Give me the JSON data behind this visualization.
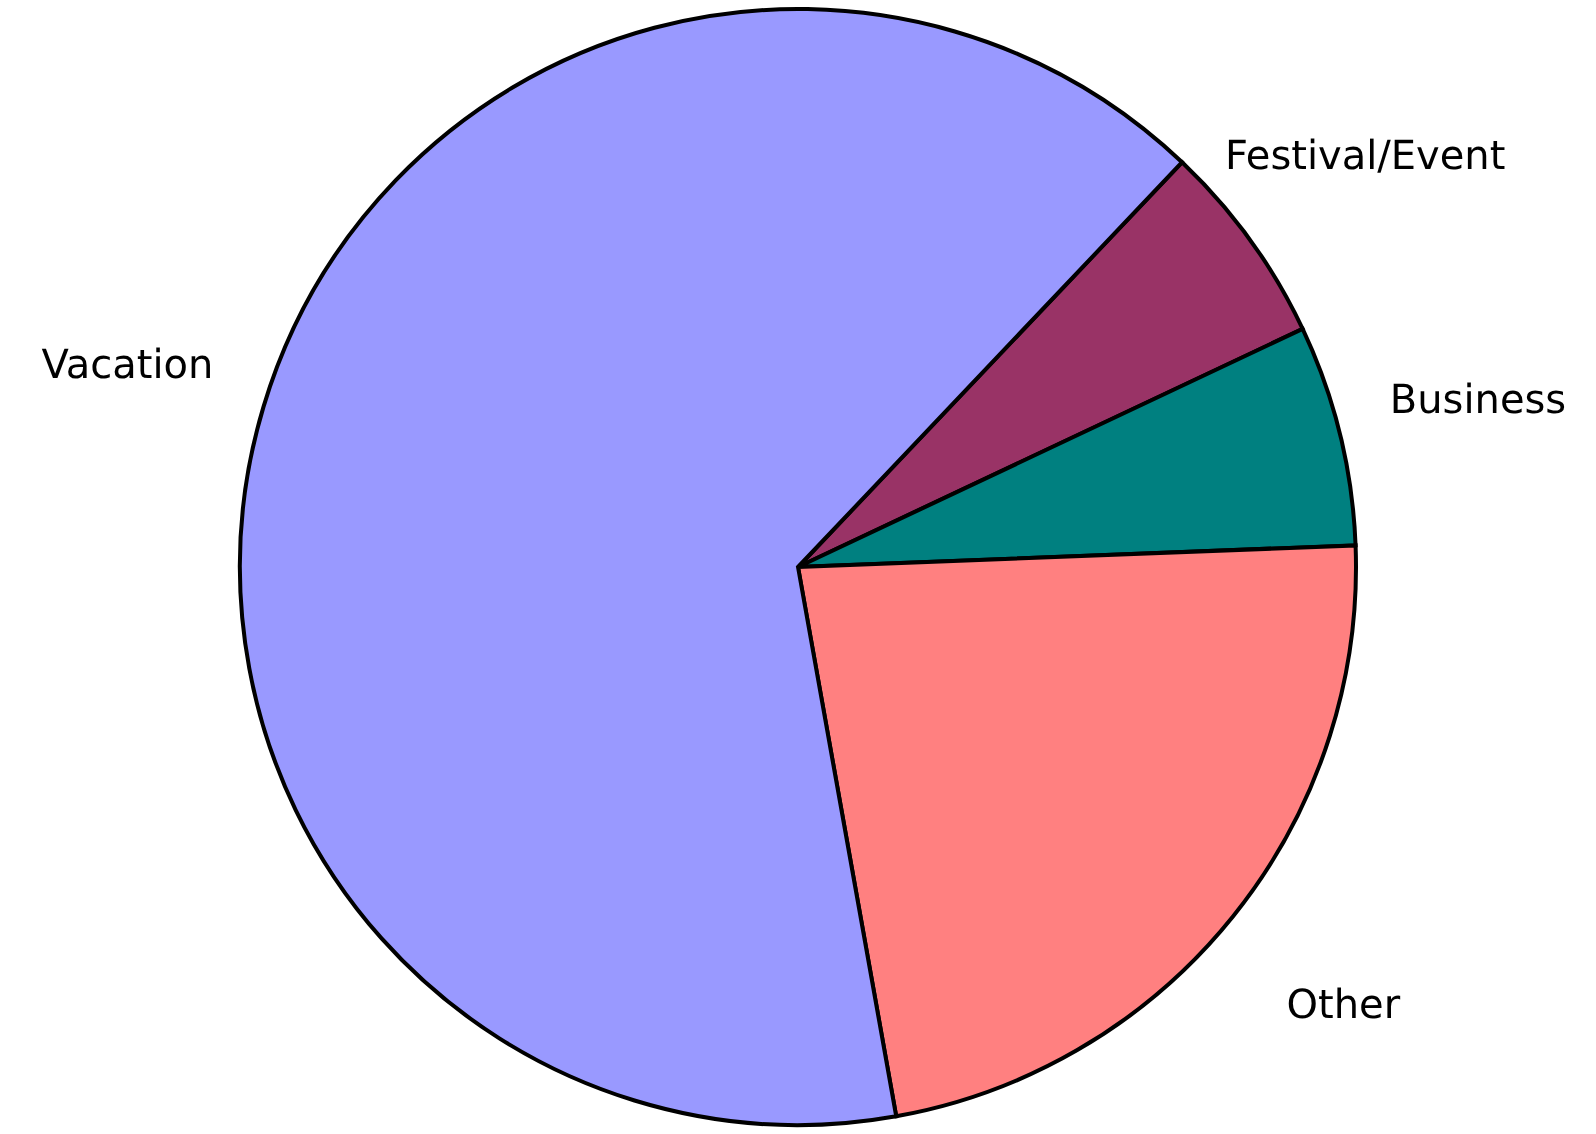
{
  "chart_data": {
    "type": "pie",
    "categories": [
      "Festival/Event",
      "Business",
      "Other",
      "Vacation"
    ],
    "values": [
      5.9,
      6.4,
      22.8,
      64.9
    ],
    "colors": [
      "#993366",
      "#008080",
      "#ff8080",
      "#9999ff"
    ]
  }
}
